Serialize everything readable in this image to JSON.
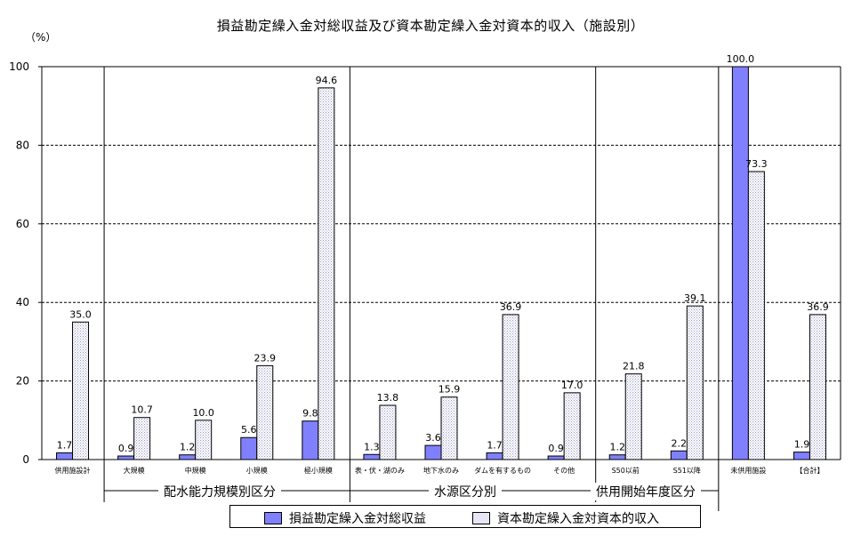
{
  "chart_data": {
    "type": "bar",
    "title": "損益勘定繰入金対総収益及び資本勘定繰入金対資本的収入（施設別）",
    "unit_label": "（%）",
    "ylim": [
      0,
      100
    ],
    "yticks": [
      "0",
      "20",
      "40",
      "60",
      "80",
      "100"
    ],
    "grid": true,
    "categories": [
      "供用施設計",
      "大規模",
      "中規模",
      "小規模",
      "極小規模",
      "表・伏・湖のみ",
      "地下水のみ",
      "ダムを有するもの",
      "その他",
      "S50以前",
      "S51以降",
      "未供用施設",
      "【合計】"
    ],
    "series": [
      {
        "name": "損益勘定繰入金対総収益",
        "color": "#8080ff",
        "values": [
          1.7,
          0.9,
          1.2,
          5.6,
          9.8,
          1.3,
          3.6,
          1.7,
          0.9,
          1.2,
          2.2,
          100.0,
          1.9
        ],
        "labels": [
          "1.7",
          "0.9",
          "1.2",
          "5.6",
          "9.8",
          "1.3",
          "3.6",
          "1.7",
          "0.9",
          "1.2",
          "2.2",
          "100.0",
          "1.9"
        ]
      },
      {
        "name": "資本勘定繰入金対資本的収入",
        "color": "#e6e6f5",
        "values": [
          35.0,
          10.7,
          10.0,
          23.9,
          94.6,
          13.8,
          15.9,
          36.9,
          17.0,
          21.8,
          39.1,
          73.3,
          36.9
        ],
        "labels": [
          "35.0",
          "10.7",
          "10.0",
          "23.9",
          "94.6",
          "13.8",
          "15.9",
          "36.9",
          "17.0",
          "21.8",
          "39.1",
          "73.3",
          "36.9"
        ]
      }
    ],
    "groups": [
      {
        "label": "配水能力規模別区分",
        "from": 1,
        "to": 4
      },
      {
        "label": "水源区分別",
        "from": 5,
        "to": 8
      },
      {
        "label": "供用開始年度区分",
        "from": 9,
        "to": 10
      }
    ],
    "legend_position": "bottom"
  }
}
